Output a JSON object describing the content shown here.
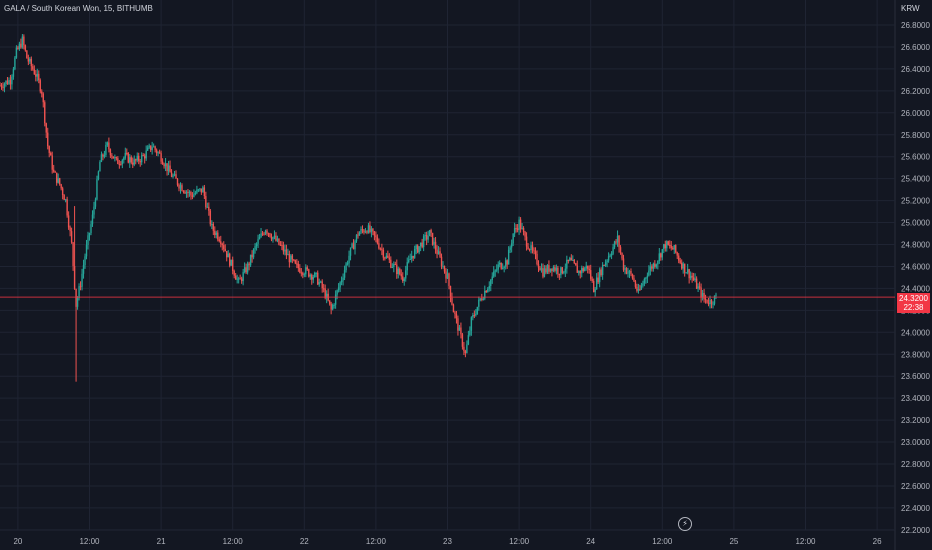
{
  "header": {
    "symbol_line": "GALA / South Korean Won, 15, BITHUMB",
    "currency": "KRW"
  },
  "last_price": {
    "price": "24.3200",
    "countdown": "22:38"
  },
  "icons": {
    "bolt": "lightning-bolt-icon"
  },
  "colors": {
    "background": "#131722",
    "grid": "#1f2433",
    "up": "#26a69a",
    "down": "#ef5350",
    "price_line": "#f23645",
    "axis_text": "#b2b5be"
  },
  "chart_data": {
    "type": "candlestick",
    "title": "GALA / South Korean Won, 15, BITHUMB",
    "ylabel": "KRW",
    "interval_minutes": 15,
    "x_start": "2023-01-19T21:00",
    "x_end": "2023-01-26T03:00",
    "ylim": [
      22.2,
      26.9
    ],
    "y_ticks": [
      "26.8000",
      "26.6000",
      "26.4000",
      "26.2000",
      "26.0000",
      "25.8000",
      "25.6000",
      "25.4000",
      "25.2000",
      "25.0000",
      "24.8000",
      "24.6000",
      "24.4000",
      "24.2000",
      "24.0000",
      "23.8000",
      "23.6000",
      "23.4000",
      "23.2000",
      "23.0000",
      "22.8000",
      "22.6000",
      "22.4000",
      "22.2000"
    ],
    "x_ticks": [
      {
        "label": "20",
        "t": "2023-01-20T00:00"
      },
      {
        "label": "12:00",
        "t": "2023-01-20T12:00"
      },
      {
        "label": "21",
        "t": "2023-01-21T00:00"
      },
      {
        "label": "12:00",
        "t": "2023-01-21T12:00"
      },
      {
        "label": "22",
        "t": "2023-01-22T00:00"
      },
      {
        "label": "12:00",
        "t": "2023-01-22T12:00"
      },
      {
        "label": "23",
        "t": "2023-01-23T00:00"
      },
      {
        "label": "12:00",
        "t": "2023-01-23T12:00"
      },
      {
        "label": "24",
        "t": "2023-01-24T00:00"
      },
      {
        "label": "12:00",
        "t": "2023-01-24T12:00"
      },
      {
        "label": "25",
        "t": "2023-01-25T00:00"
      },
      {
        "label": "12:00",
        "t": "2023-01-25T12:00"
      },
      {
        "label": "26",
        "t": "2023-01-26T00:00"
      }
    ],
    "last_price": 24.32,
    "grid": true,
    "close_path": [
      [
        "2023-01-19T21:00",
        26.25
      ],
      [
        "2023-01-19T22:45",
        26.3
      ],
      [
        "2023-01-19T23:45",
        26.55
      ],
      [
        "2023-01-20T00:45",
        26.66
      ],
      [
        "2023-01-20T01:30",
        26.5
      ],
      [
        "2023-01-20T03:00",
        26.35
      ],
      [
        "2023-01-20T04:00",
        26.2
      ],
      [
        "2023-01-20T05:00",
        25.7
      ],
      [
        "2023-01-20T06:00",
        25.45
      ],
      [
        "2023-01-20T07:00",
        25.35
      ],
      [
        "2023-01-20T08:00",
        25.2
      ],
      [
        "2023-01-20T09:00",
        24.8
      ],
      [
        "2023-01-20T09:45",
        24.25
      ],
      [
        "2023-01-20T10:30",
        24.45
      ],
      [
        "2023-01-20T11:15",
        24.7
      ],
      [
        "2023-01-20T12:30",
        25.05
      ],
      [
        "2023-01-20T13:45",
        25.55
      ],
      [
        "2023-01-20T15:00",
        25.7
      ],
      [
        "2023-01-20T16:30",
        25.55
      ],
      [
        "2023-01-20T18:00",
        25.6
      ],
      [
        "2023-01-20T19:30",
        25.55
      ],
      [
        "2023-01-20T21:00",
        25.6
      ],
      [
        "2023-01-20T22:30",
        25.7
      ],
      [
        "2023-01-21T00:00",
        25.6
      ],
      [
        "2023-01-21T01:30",
        25.45
      ],
      [
        "2023-01-21T03:00",
        25.35
      ],
      [
        "2023-01-21T05:00",
        25.25
      ],
      [
        "2023-01-21T07:00",
        25.3
      ],
      [
        "2023-01-21T08:30",
        24.95
      ],
      [
        "2023-01-21T10:00",
        24.85
      ],
      [
        "2023-01-21T11:30",
        24.65
      ],
      [
        "2023-01-21T13:00",
        24.45
      ],
      [
        "2023-01-21T14:30",
        24.6
      ],
      [
        "2023-01-21T16:00",
        24.8
      ],
      [
        "2023-01-21T17:30",
        24.95
      ],
      [
        "2023-01-21T19:00",
        24.85
      ],
      [
        "2023-01-21T20:30",
        24.75
      ],
      [
        "2023-01-21T22:30",
        24.6
      ],
      [
        "2023-01-22T00:30",
        24.55
      ],
      [
        "2023-01-22T02:00",
        24.5
      ],
      [
        "2023-01-22T03:30",
        24.35
      ],
      [
        "2023-01-22T04:30",
        24.2
      ],
      [
        "2023-01-22T06:00",
        24.45
      ],
      [
        "2023-01-22T07:30",
        24.7
      ],
      [
        "2023-01-22T09:00",
        24.9
      ],
      [
        "2023-01-22T10:30",
        24.95
      ],
      [
        "2023-01-22T12:00",
        24.85
      ],
      [
        "2023-01-22T13:30",
        24.7
      ],
      [
        "2023-01-22T15:00",
        24.6
      ],
      [
        "2023-01-22T16:30",
        24.5
      ],
      [
        "2023-01-22T18:00",
        24.7
      ],
      [
        "2023-01-22T19:30",
        24.8
      ],
      [
        "2023-01-22T21:00",
        24.9
      ],
      [
        "2023-01-22T22:30",
        24.7
      ],
      [
        "2023-01-23T00:00",
        24.5
      ],
      [
        "2023-01-23T01:00",
        24.2
      ],
      [
        "2023-01-23T02:00",
        24.0
      ],
      [
        "2023-01-23T03:00",
        23.8
      ],
      [
        "2023-01-23T04:00",
        24.1
      ],
      [
        "2023-01-23T05:30",
        24.3
      ],
      [
        "2023-01-23T07:00",
        24.45
      ],
      [
        "2023-01-23T08:30",
        24.6
      ],
      [
        "2023-01-23T10:00",
        24.65
      ],
      [
        "2023-01-23T11:00",
        24.9
      ],
      [
        "2023-01-23T12:00",
        25.0
      ],
      [
        "2023-01-23T13:00",
        24.85
      ],
      [
        "2023-01-23T14:30",
        24.7
      ],
      [
        "2023-01-23T16:00",
        24.55
      ],
      [
        "2023-01-23T17:30",
        24.6
      ],
      [
        "2023-01-23T19:00",
        24.55
      ],
      [
        "2023-01-23T20:30",
        24.65
      ],
      [
        "2023-01-23T22:00",
        24.55
      ],
      [
        "2023-01-23T23:30",
        24.6
      ],
      [
        "2023-01-24T00:30",
        24.4
      ],
      [
        "2023-01-24T02:00",
        24.6
      ],
      [
        "2023-01-24T03:30",
        24.75
      ],
      [
        "2023-01-24T04:30",
        24.85
      ],
      [
        "2023-01-24T05:30",
        24.6
      ],
      [
        "2023-01-24T07:00",
        24.5
      ],
      [
        "2023-01-24T08:00",
        24.35
      ],
      [
        "2023-01-24T09:30",
        24.55
      ],
      [
        "2023-01-24T11:00",
        24.65
      ],
      [
        "2023-01-24T12:30",
        24.8
      ],
      [
        "2023-01-24T14:00",
        24.75
      ],
      [
        "2023-01-24T15:30",
        24.6
      ],
      [
        "2023-01-24T17:00",
        24.5
      ],
      [
        "2023-01-24T18:00",
        24.4
      ],
      [
        "2023-01-24T19:00",
        24.3
      ],
      [
        "2023-01-24T20:00",
        24.28
      ],
      [
        "2023-01-24T21:00",
        24.32
      ]
    ],
    "spikes": [
      {
        "t": "2023-01-20T09:45",
        "low": 23.55
      },
      {
        "t": "2023-01-20T09:30",
        "high": 25.15
      }
    ]
  }
}
